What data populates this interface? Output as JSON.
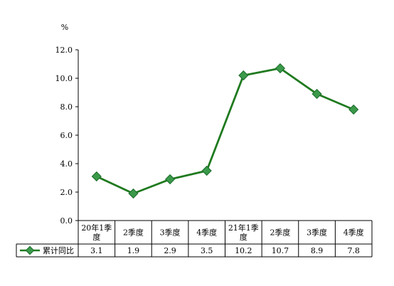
{
  "chart_data": {
    "type": "line",
    "unit_label": "%",
    "categories": [
      [
        "20年1季",
        "度"
      ],
      [
        "2季度"
      ],
      [
        "3季度"
      ],
      [
        "4季度"
      ],
      [
        "21年1季",
        "度"
      ],
      [
        "2季度"
      ],
      [
        "3季度"
      ],
      [
        "4季度"
      ]
    ],
    "series": [
      {
        "name": "累计同比",
        "values": [
          3.1,
          1.9,
          2.9,
          3.5,
          10.2,
          10.7,
          8.9,
          7.8
        ],
        "value_labels": [
          "3.1",
          "1.9",
          "2.9",
          "3.5",
          "10.2",
          "10.7",
          "8.9",
          "7.8"
        ]
      }
    ],
    "y_ticks": [
      "0.0",
      "2.0",
      "4.0",
      "6.0",
      "8.0",
      "10.0",
      "12.0"
    ],
    "ylim": [
      0,
      12
    ],
    "grid": false,
    "legend": "data-table-below",
    "colors": {
      "line": "#1f7a1f",
      "marker_fill": "#3a9a4a",
      "marker_stroke": "#1b6b2a"
    }
  }
}
